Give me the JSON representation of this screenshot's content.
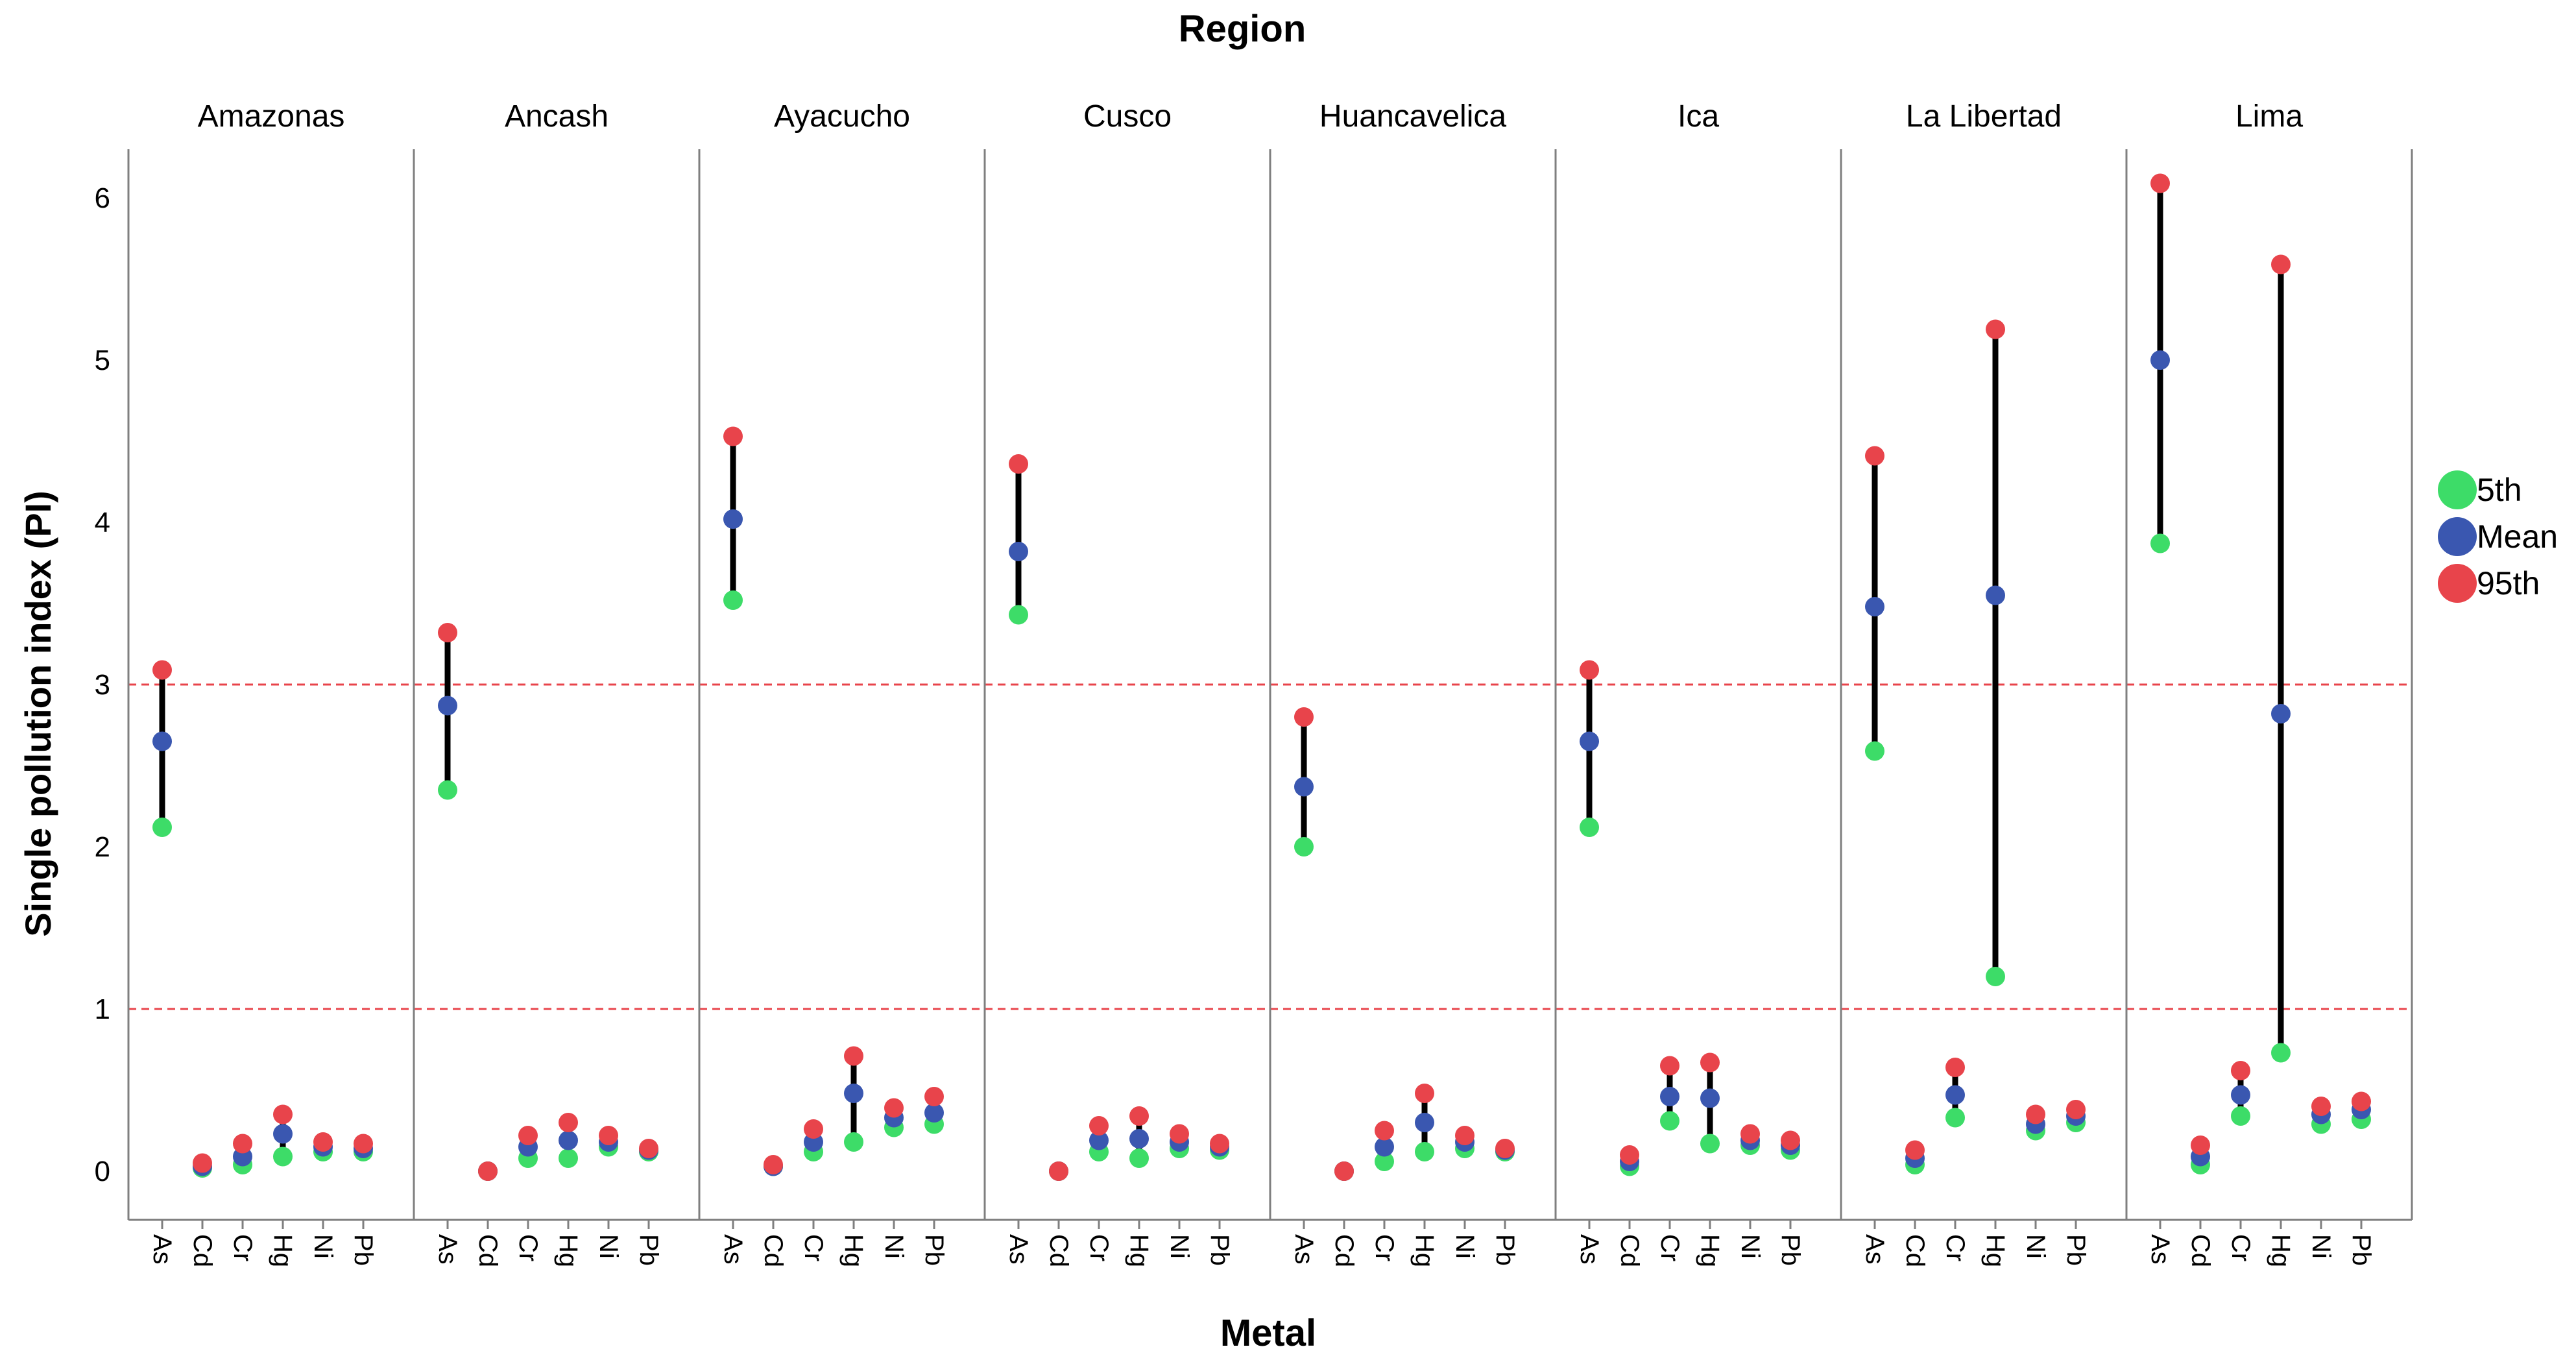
{
  "chart_data": {
    "type": "dot-range",
    "title": "Region",
    "xlabel": "Metal",
    "ylabel": "Single pollution index (PI)",
    "ylim": [
      -0.3,
      6.3
    ],
    "yticks": [
      0,
      1,
      2,
      3,
      4,
      5,
      6
    ],
    "reference_lines": [
      1,
      3
    ],
    "categories": [
      "As",
      "Cd",
      "Cr",
      "Hg",
      "Ni",
      "Pb"
    ],
    "legend": [
      {
        "key": "p5",
        "label": "5th",
        "color": "#3ddc68"
      },
      {
        "key": "mean",
        "label": "Mean",
        "color": "#3a57b0"
      },
      {
        "key": "p95",
        "label": "95th",
        "color": "#e8444b"
      }
    ],
    "colors": {
      "range_line": "#000000",
      "reference_line": "#e8444b",
      "axis": "#7f7f7f"
    },
    "panels": [
      {
        "region": "Amazonas",
        "values": [
          {
            "p5": 2.12,
            "mean": 2.65,
            "p95": 3.09
          },
          {
            "p5": 0.02,
            "mean": 0.03,
            "p95": 0.05
          },
          {
            "p5": 0.04,
            "mean": 0.09,
            "p95": 0.17
          },
          {
            "p5": 0.09,
            "mean": 0.23,
            "p95": 0.35
          },
          {
            "p5": 0.12,
            "mean": 0.15,
            "p95": 0.18
          },
          {
            "p5": 0.12,
            "mean": 0.14,
            "p95": 0.17
          }
        ]
      },
      {
        "region": "Ancash",
        "values": [
          {
            "p5": 2.35,
            "mean": 2.87,
            "p95": 3.32
          },
          {
            "p5": 0.0,
            "mean": 0.0,
            "p95": 0.0
          },
          {
            "p5": 0.08,
            "mean": 0.15,
            "p95": 0.22
          },
          {
            "p5": 0.08,
            "mean": 0.19,
            "p95": 0.3
          },
          {
            "p5": 0.15,
            "mean": 0.18,
            "p95": 0.22
          },
          {
            "p5": 0.12,
            "mean": 0.13,
            "p95": 0.14
          }
        ]
      },
      {
        "region": "Ayacucho",
        "values": [
          {
            "p5": 3.52,
            "mean": 4.02,
            "p95": 4.53
          },
          {
            "p5": 0.03,
            "mean": 0.03,
            "p95": 0.04
          },
          {
            "p5": 0.12,
            "mean": 0.18,
            "p95": 0.26
          },
          {
            "p5": 0.18,
            "mean": 0.48,
            "p95": 0.71
          },
          {
            "p5": 0.27,
            "mean": 0.33,
            "p95": 0.39
          },
          {
            "p5": 0.29,
            "mean": 0.36,
            "p95": 0.46
          }
        ]
      },
      {
        "region": "Cusco",
        "values": [
          {
            "p5": 3.43,
            "mean": 3.82,
            "p95": 4.36
          },
          {
            "p5": 0.0,
            "mean": 0.0,
            "p95": 0.0
          },
          {
            "p5": 0.12,
            "mean": 0.19,
            "p95": 0.28
          },
          {
            "p5": 0.08,
            "mean": 0.2,
            "p95": 0.34
          },
          {
            "p5": 0.14,
            "mean": 0.18,
            "p95": 0.23
          },
          {
            "p5": 0.13,
            "mean": 0.15,
            "p95": 0.17
          }
        ]
      },
      {
        "region": "Huancavelica",
        "values": [
          {
            "p5": 2.0,
            "mean": 2.37,
            "p95": 2.8
          },
          {
            "p5": 0.0,
            "mean": 0.0,
            "p95": 0.0
          },
          {
            "p5": 0.06,
            "mean": 0.15,
            "p95": 0.25
          },
          {
            "p5": 0.12,
            "mean": 0.3,
            "p95": 0.48
          },
          {
            "p5": 0.14,
            "mean": 0.18,
            "p95": 0.22
          },
          {
            "p5": 0.12,
            "mean": 0.13,
            "p95": 0.14
          }
        ]
      },
      {
        "region": "Ica",
        "values": [
          {
            "p5": 2.12,
            "mean": 2.65,
            "p95": 3.09
          },
          {
            "p5": 0.03,
            "mean": 0.06,
            "p95": 0.1
          },
          {
            "p5": 0.31,
            "mean": 0.46,
            "p95": 0.65
          },
          {
            "p5": 0.17,
            "mean": 0.45,
            "p95": 0.67
          },
          {
            "p5": 0.16,
            "mean": 0.19,
            "p95": 0.23
          },
          {
            "p5": 0.13,
            "mean": 0.16,
            "p95": 0.19
          }
        ]
      },
      {
        "region": "La Libertad",
        "values": [
          {
            "p5": 2.59,
            "mean": 3.48,
            "p95": 4.41
          },
          {
            "p5": 0.04,
            "mean": 0.08,
            "p95": 0.13
          },
          {
            "p5": 0.33,
            "mean": 0.47,
            "p95": 0.64
          },
          {
            "p5": 1.2,
            "mean": 3.55,
            "p95": 5.19
          },
          {
            "p5": 0.25,
            "mean": 0.29,
            "p95": 0.35
          },
          {
            "p5": 0.3,
            "mean": 0.34,
            "p95": 0.38
          }
        ]
      },
      {
        "region": "Lima",
        "values": [
          {
            "p5": 3.87,
            "mean": 5.0,
            "p95": 6.09
          },
          {
            "p5": 0.04,
            "mean": 0.09,
            "p95": 0.16
          },
          {
            "p5": 0.34,
            "mean": 0.47,
            "p95": 0.62
          },
          {
            "p5": 0.73,
            "mean": 2.82,
            "p95": 5.59
          },
          {
            "p5": 0.29,
            "mean": 0.35,
            "p95": 0.4
          },
          {
            "p5": 0.32,
            "mean": 0.38,
            "p95": 0.43
          }
        ]
      }
    ]
  }
}
